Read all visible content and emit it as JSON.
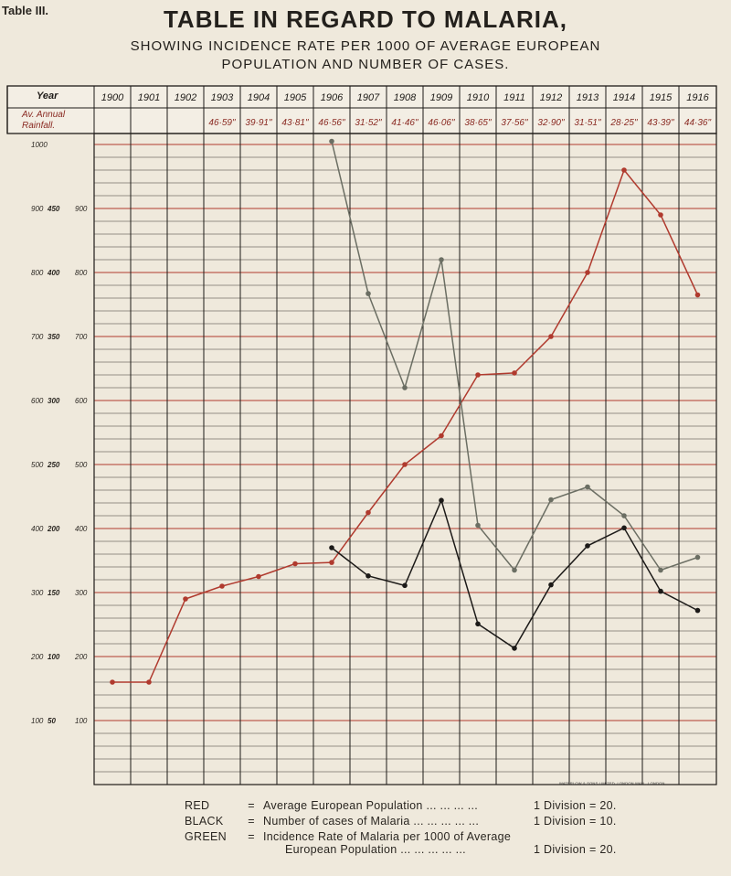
{
  "table_label": "Table III.",
  "title": "TABLE IN REGARD TO MALARIA,",
  "subtitle_line1": "SHOWING INCIDENCE RATE PER 1000 OF AVERAGE EUROPEAN",
  "subtitle_line2": "POPULATION AND NUMBER OF CASES.",
  "header": {
    "year_label": "Year",
    "rainfall_label_line1": "Av. Annual",
    "rainfall_label_line2": "Rainfall."
  },
  "printer_imprint": "WATERLOW & SONS LIMITED, LONDON WALL, LONDON",
  "legend": [
    {
      "color_name": "RED",
      "eq": "=",
      "description": "Average European Population",
      "dots": "... ... ... ...",
      "division": "1 Division",
      "div_eq": "=",
      "value": "20."
    },
    {
      "color_name": "BLACK",
      "eq": "=",
      "description": "Number of cases of Malaria",
      "dots": "... ... ... ... ...",
      "division": "1 Division",
      "div_eq": "=",
      "value": "10."
    },
    {
      "color_name": "GREEN",
      "eq": "=",
      "description": "Incidence Rate of Malaria per 1000 of Average",
      "description_line2": "European Population ...  ...  ...  ...  ...",
      "division": "1 Division",
      "div_eq": "=",
      "value": "20."
    }
  ],
  "chart_data": {
    "type": "line",
    "x": [
      "1900",
      "1901",
      "1902",
      "1903",
      "1904",
      "1905",
      "1906",
      "1907",
      "1908",
      "1909",
      "1910",
      "1911",
      "1912",
      "1913",
      "1914",
      "1915",
      "1916"
    ],
    "rainfall": [
      "",
      "",
      "",
      "46·59\"",
      "39·91\"",
      "43·81\"",
      "46·56\"",
      "31·52\"",
      "41·46\"",
      "46·06\"",
      "38·65\"",
      "37·56\"",
      "32·90\"",
      "31·51\"",
      "28·25\"",
      "43·39\"",
      "44·36\""
    ],
    "y_axis_left": [
      "1000",
      "900",
      "800",
      "700",
      "600",
      "500",
      "400",
      "300",
      "200",
      "100"
    ],
    "y_axis_mid": [
      "450",
      "400",
      "350",
      "300",
      "250",
      "200",
      "150",
      "100",
      "50"
    ],
    "y_axis_right": [
      "900",
      "800",
      "700",
      "600",
      "500",
      "400",
      "300",
      "200",
      "100"
    ],
    "ylim": [
      0,
      1000
    ],
    "series": [
      {
        "name": "Average European Population",
        "color": "#b03a2e",
        "scale": "1 Division = 20",
        "values": [
          160,
          160,
          290,
          310,
          325,
          345,
          347,
          425,
          500,
          545,
          640,
          643,
          700,
          800,
          960,
          890,
          765
        ]
      },
      {
        "name": "Number of cases of Malaria",
        "color": "#1c1a18",
        "scale": "1 Division = 10",
        "values": [
          null,
          null,
          null,
          null,
          null,
          null,
          370,
          326,
          311,
          444,
          251,
          213,
          312,
          373,
          401,
          302,
          272
        ]
      },
      {
        "name": "Incidence Rate of Malaria per 1000 of Average European Population",
        "color": "#6b6e63",
        "scale": "1 Division = 20",
        "values": [
          null,
          null,
          null,
          null,
          null,
          null,
          1005,
          767,
          620,
          820,
          405,
          335,
          445,
          465,
          420,
          335,
          355
        ]
      }
    ],
    "grid": true,
    "legend_position": "bottom"
  }
}
